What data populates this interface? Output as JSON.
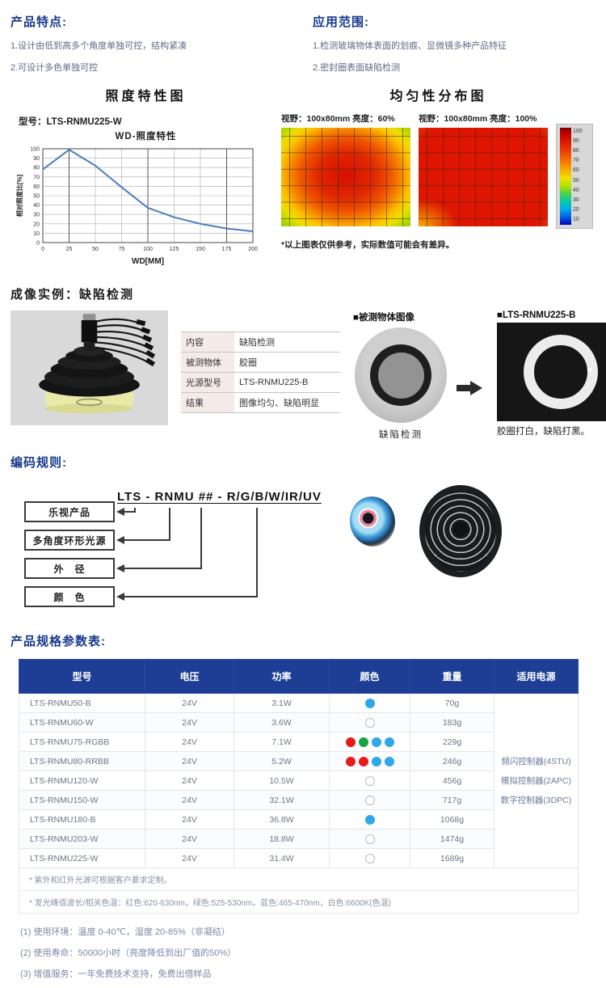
{
  "features": {
    "title": "产品特点:",
    "items": [
      "1.设计由低到高多个角度单独可控，结构紧凑",
      "2.可设计多色单独可控"
    ]
  },
  "applications": {
    "title": "应用范围:",
    "items": [
      "1.检测玻璃物体表面的划痕、显微镜多种产品特征",
      "2.密封圈表面缺陷检测"
    ]
  },
  "illuminance": {
    "section_title": "照度特性图",
    "model_label": "型号：LTS-RNMU225-W"
  },
  "uniformity": {
    "section_title": "均匀性分布图",
    "left_label": "视野：100x80mm 亮度：60%",
    "right_label": "视野：100x80mm 亮度：100%",
    "footnote": "*以上图表仅供参考，实际数值可能会有差异。",
    "colorbar_ticks": [
      100,
      90,
      80,
      70,
      60,
      50,
      40,
      30,
      20,
      10
    ]
  },
  "chart_data": [
    {
      "type": "line",
      "title": "WD-照度特性",
      "xlabel": "WD[MM]",
      "ylabel": "相对照度比[%]",
      "x": [
        0,
        25,
        50,
        75,
        100,
        125,
        150,
        175,
        200
      ],
      "y": [
        78,
        99,
        82,
        59,
        37,
        27,
        20,
        15,
        12
      ],
      "xlim": [
        0,
        200
      ],
      "ylim": [
        0,
        100
      ],
      "x_ticks": [
        0,
        25,
        50,
        75,
        100,
        125,
        150,
        175,
        200
      ],
      "y_tick_step": 10,
      "grid": true,
      "legend": null,
      "line_color": "#4a7ebb"
    },
    {
      "type": "heatmap",
      "title": "视野：100x80mm 亮度：60%",
      "pattern": "red hot center, orange-yellow ring, green corners",
      "approx_center_value": 95,
      "approx_corner_value": 60
    },
    {
      "type": "heatmap",
      "title": "视野：100x80mm 亮度：100%",
      "pattern": "uniform saturated red, slight orange edges, yellow lower-left corner",
      "approx_center_value": 95,
      "approx_corner_value": 75
    },
    {
      "type": "colorbar",
      "ticks": [
        100,
        90,
        80,
        70,
        60,
        50,
        40,
        30,
        20,
        10
      ]
    }
  ],
  "imaging": {
    "section_title": "成像实例：缺陷检测",
    "info_rows": [
      {
        "label": "内容",
        "value": "缺陷检测"
      },
      {
        "label": "被测物体",
        "value": "胶圈"
      },
      {
        "label": "光源型号",
        "value": "LTS-RNMU225-B"
      },
      {
        "label": "结果",
        "value": "图像均匀、缺陷明显"
      }
    ],
    "left_image_title": "■被测物体图像",
    "left_caption": "缺陷检测",
    "right_image_title": "■LTS-RNMU225-B",
    "right_caption": "胶圈打白，缺陷打黑。"
  },
  "coding": {
    "section_title": "编码规则:",
    "code": "LTS - RNMU ## - R/G/B/W/IR/UV",
    "boxes": [
      "乐视产品",
      "多角度环形光源",
      "外　径",
      "颜　色"
    ]
  },
  "spec": {
    "section_title": "产品规格参数表:",
    "headers": [
      "型号",
      "电压",
      "功率",
      "颜色",
      "重量",
      "适用电源"
    ],
    "rows": [
      {
        "model": "LTS-RNMU50-B",
        "voltage": "24V",
        "power": "3.1W",
        "dots": [
          "blue"
        ],
        "weight": "70g"
      },
      {
        "model": "LTS-RNMU60-W",
        "voltage": "24V",
        "power": "3.6W",
        "dots": [
          "white"
        ],
        "weight": "183g"
      },
      {
        "model": "LTS-RNMU75-RGBB",
        "voltage": "24V",
        "power": "7.1W",
        "dots": [
          "red",
          "green",
          "blue",
          "blue"
        ],
        "weight": "229g"
      },
      {
        "model": "LTS-RNMU80-RRBB",
        "voltage": "24V",
        "power": "5.2W",
        "dots": [
          "red",
          "red",
          "blue",
          "blue"
        ],
        "weight": "246g"
      },
      {
        "model": "LTS-RNMU120-W",
        "voltage": "24V",
        "power": "10.5W",
        "dots": [
          "white"
        ],
        "weight": "456g"
      },
      {
        "model": "LTS-RNMU150-W",
        "voltage": "24V",
        "power": "32.1W",
        "dots": [
          "white"
        ],
        "weight": "717g"
      },
      {
        "model": "LTS-RNMU180-B",
        "voltage": "24V",
        "power": "36.8W",
        "dots": [
          "blue"
        ],
        "weight": "1068g"
      },
      {
        "model": "LTS-RNMU203-W",
        "voltage": "24V",
        "power": "18.8W",
        "dots": [
          "white"
        ],
        "weight": "1474g"
      },
      {
        "model": "LTS-RNMU225-W",
        "voltage": "24V",
        "power": "31.4W",
        "dots": [
          "white"
        ],
        "weight": "1689g"
      }
    ],
    "power_supply_options": [
      "频闪控制器(4STU)",
      "模拟控制器(2APC)",
      "数字控制器(3DPC)"
    ],
    "table_footnotes": [
      "* 紫外和红外光源可根据客户要求定制。",
      "* 发光峰值波长/相关色温：红色:620-630nm，绿色:525-530nm，蓝色:465-470nm，白色:6600K(色温)"
    ],
    "notes": [
      "(1) 使用环境：温度 0-40℃，湿度 20-85%（非凝结）",
      "(2) 使用寿命：50000小时（亮度降低到出厂值的50%）",
      "(3) 增值服务：一年免费技术支持，免费出借样品"
    ]
  },
  "colors": {
    "accent_navy": "#1d3e94",
    "dot_blue": "#2fa8e8",
    "dot_red": "#e81b1b",
    "dot_green": "#17a348",
    "chart_line": "#4a7ebb"
  }
}
